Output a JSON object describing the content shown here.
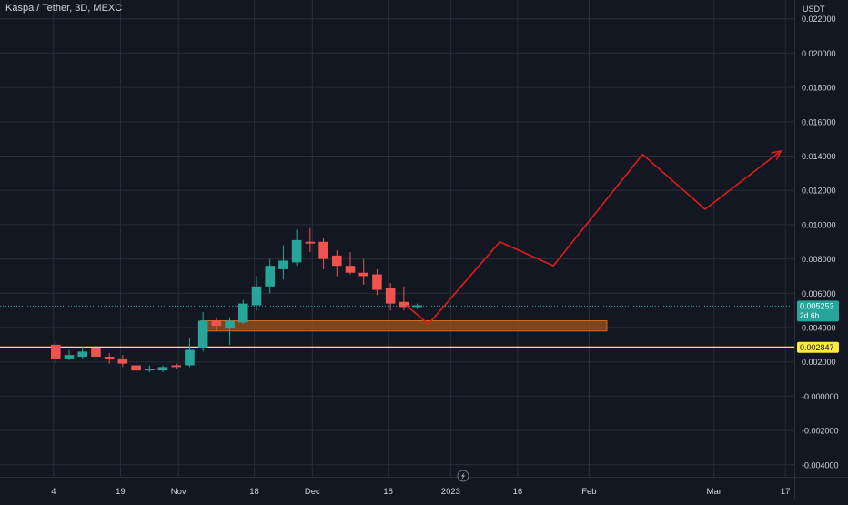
{
  "chart_data": {
    "type": "candlestick",
    "title": "Kaspa / Tether, 3D, MEXC",
    "currency_label": "USDT",
    "ylim": [
      -0.0047,
      0.0231
    ],
    "y_ticks": [
      0.022,
      0.02,
      0.018,
      0.016,
      0.014,
      0.012,
      0.01,
      0.008,
      0.006,
      0.004,
      0.002,
      -0.0,
      -0.002,
      -0.004
    ],
    "y_tick_labels": [
      "0.022000",
      "0.020000",
      "0.018000",
      "0.016000",
      "0.014000",
      "0.012000",
      "0.010000",
      "0.008000",
      "0.006000",
      "0.004000",
      "0.002000",
      "-0.000000",
      "-0.002000",
      "-0.004000"
    ],
    "x_range": [
      "2022-09-22",
      "2023-03-19"
    ],
    "x_ticks": [
      {
        "date": "2022-10-04",
        "label": "4"
      },
      {
        "date": "2022-10-19",
        "label": "19"
      },
      {
        "date": "2022-11-01",
        "label": "Nov"
      },
      {
        "date": "2022-11-18",
        "label": "18"
      },
      {
        "date": "2022-12-01",
        "label": "Dec"
      },
      {
        "date": "2022-12-18",
        "label": "18"
      },
      {
        "date": "2023-01-01",
        "label": "2023"
      },
      {
        "date": "2023-01-16",
        "label": "16"
      },
      {
        "date": "2023-02-01",
        "label": "Feb"
      },
      {
        "date": "2023-03-01",
        "label": "Mar"
      },
      {
        "date": "2023-03-17",
        "label": "17"
      }
    ],
    "grid": true,
    "candles": [
      {
        "date": "2022-10-03",
        "open": 0.003,
        "high": 0.0032,
        "low": 0.0019,
        "close": 0.0022
      },
      {
        "date": "2022-10-06",
        "open": 0.0022,
        "high": 0.0027,
        "low": 0.0021,
        "close": 0.0024
      },
      {
        "date": "2022-10-09",
        "open": 0.0023,
        "high": 0.0029,
        "low": 0.0022,
        "close": 0.0026
      },
      {
        "date": "2022-10-12",
        "open": 0.0028,
        "high": 0.003,
        "low": 0.0021,
        "close": 0.0023
      },
      {
        "date": "2022-10-15",
        "open": 0.0023,
        "high": 0.0025,
        "low": 0.0019,
        "close": 0.0022
      },
      {
        "date": "2022-10-18",
        "open": 0.0022,
        "high": 0.0024,
        "low": 0.0017,
        "close": 0.0019
      },
      {
        "date": "2022-10-21",
        "open": 0.0018,
        "high": 0.0022,
        "low": 0.0013,
        "close": 0.0015
      },
      {
        "date": "2022-10-24",
        "open": 0.0015,
        "high": 0.0018,
        "low": 0.0014,
        "close": 0.0016
      },
      {
        "date": "2022-10-27",
        "open": 0.0015,
        "high": 0.0018,
        "low": 0.0014,
        "close": 0.0017
      },
      {
        "date": "2022-10-30",
        "open": 0.0018,
        "high": 0.0019,
        "low": 0.0016,
        "close": 0.0017
      },
      {
        "date": "2022-11-02",
        "open": 0.0018,
        "high": 0.0034,
        "low": 0.0017,
        "close": 0.0027
      },
      {
        "date": "2022-11-05",
        "open": 0.0028,
        "high": 0.0049,
        "low": 0.0026,
        "close": 0.0044
      },
      {
        "date": "2022-11-08",
        "open": 0.0044,
        "high": 0.0046,
        "low": 0.0038,
        "close": 0.0041
      },
      {
        "date": "2022-11-11",
        "open": 0.004,
        "high": 0.0046,
        "low": 0.003,
        "close": 0.0044
      },
      {
        "date": "2022-11-14",
        "open": 0.0043,
        "high": 0.0056,
        "low": 0.0042,
        "close": 0.0054
      },
      {
        "date": "2022-11-17",
        "open": 0.0053,
        "high": 0.007,
        "low": 0.005,
        "close": 0.0064
      },
      {
        "date": "2022-11-20",
        "open": 0.0064,
        "high": 0.008,
        "low": 0.006,
        "close": 0.0076
      },
      {
        "date": "2022-11-23",
        "open": 0.0074,
        "high": 0.0088,
        "low": 0.0068,
        "close": 0.0079
      },
      {
        "date": "2022-11-26",
        "open": 0.0078,
        "high": 0.0097,
        "low": 0.0076,
        "close": 0.0091
      },
      {
        "date": "2022-11-29",
        "open": 0.009,
        "high": 0.0098,
        "low": 0.0084,
        "close": 0.0089
      },
      {
        "date": "2022-12-02",
        "open": 0.009,
        "high": 0.0092,
        "low": 0.0074,
        "close": 0.008
      },
      {
        "date": "2022-12-05",
        "open": 0.0082,
        "high": 0.0085,
        "low": 0.007,
        "close": 0.0076
      },
      {
        "date": "2022-12-08",
        "open": 0.0076,
        "high": 0.0084,
        "low": 0.0071,
        "close": 0.0072
      },
      {
        "date": "2022-12-11",
        "open": 0.0072,
        "high": 0.008,
        "low": 0.0065,
        "close": 0.007
      },
      {
        "date": "2022-12-14",
        "open": 0.0071,
        "high": 0.0074,
        "low": 0.0059,
        "close": 0.0062
      },
      {
        "date": "2022-12-17",
        "open": 0.0063,
        "high": 0.0066,
        "low": 0.005,
        "close": 0.0054
      },
      {
        "date": "2022-12-20",
        "open": 0.0055,
        "high": 0.0064,
        "low": 0.005,
        "close": 0.0052
      },
      {
        "date": "2022-12-23",
        "open": 0.0052,
        "high": 0.0054,
        "low": 0.0051,
        "close": 0.0053
      }
    ],
    "horizontal_line": {
      "value": 0.002847,
      "label": "0.002847",
      "color": "#ffeb3b"
    },
    "last_price": {
      "value": 0.005253,
      "label": "0.005253",
      "countdown": "2d 6h",
      "color": "#26a69a"
    },
    "zone": {
      "start": "2022-11-06",
      "end": "2023-02-05",
      "top": 0.0044,
      "bottom": 0.0038,
      "color": "#a0561a"
    },
    "projection_path": {
      "color": "#e01b1b",
      "points": [
        {
          "date": "2022-12-22",
          "value": 0.0053
        },
        {
          "date": "2022-12-27",
          "value": 0.0042
        },
        {
          "date": "2023-01-12",
          "value": 0.009
        },
        {
          "date": "2023-01-24",
          "value": 0.0076
        },
        {
          "date": "2023-02-13",
          "value": 0.0141
        },
        {
          "date": "2023-02-27",
          "value": 0.0109
        },
        {
          "date": "2023-03-16",
          "value": 0.0143
        }
      ]
    },
    "colors": {
      "up": "#26a69a",
      "down": "#ef5350",
      "background": "#131722",
      "grid": "#2a2e39",
      "axis_text": "#d1d4dc"
    }
  }
}
